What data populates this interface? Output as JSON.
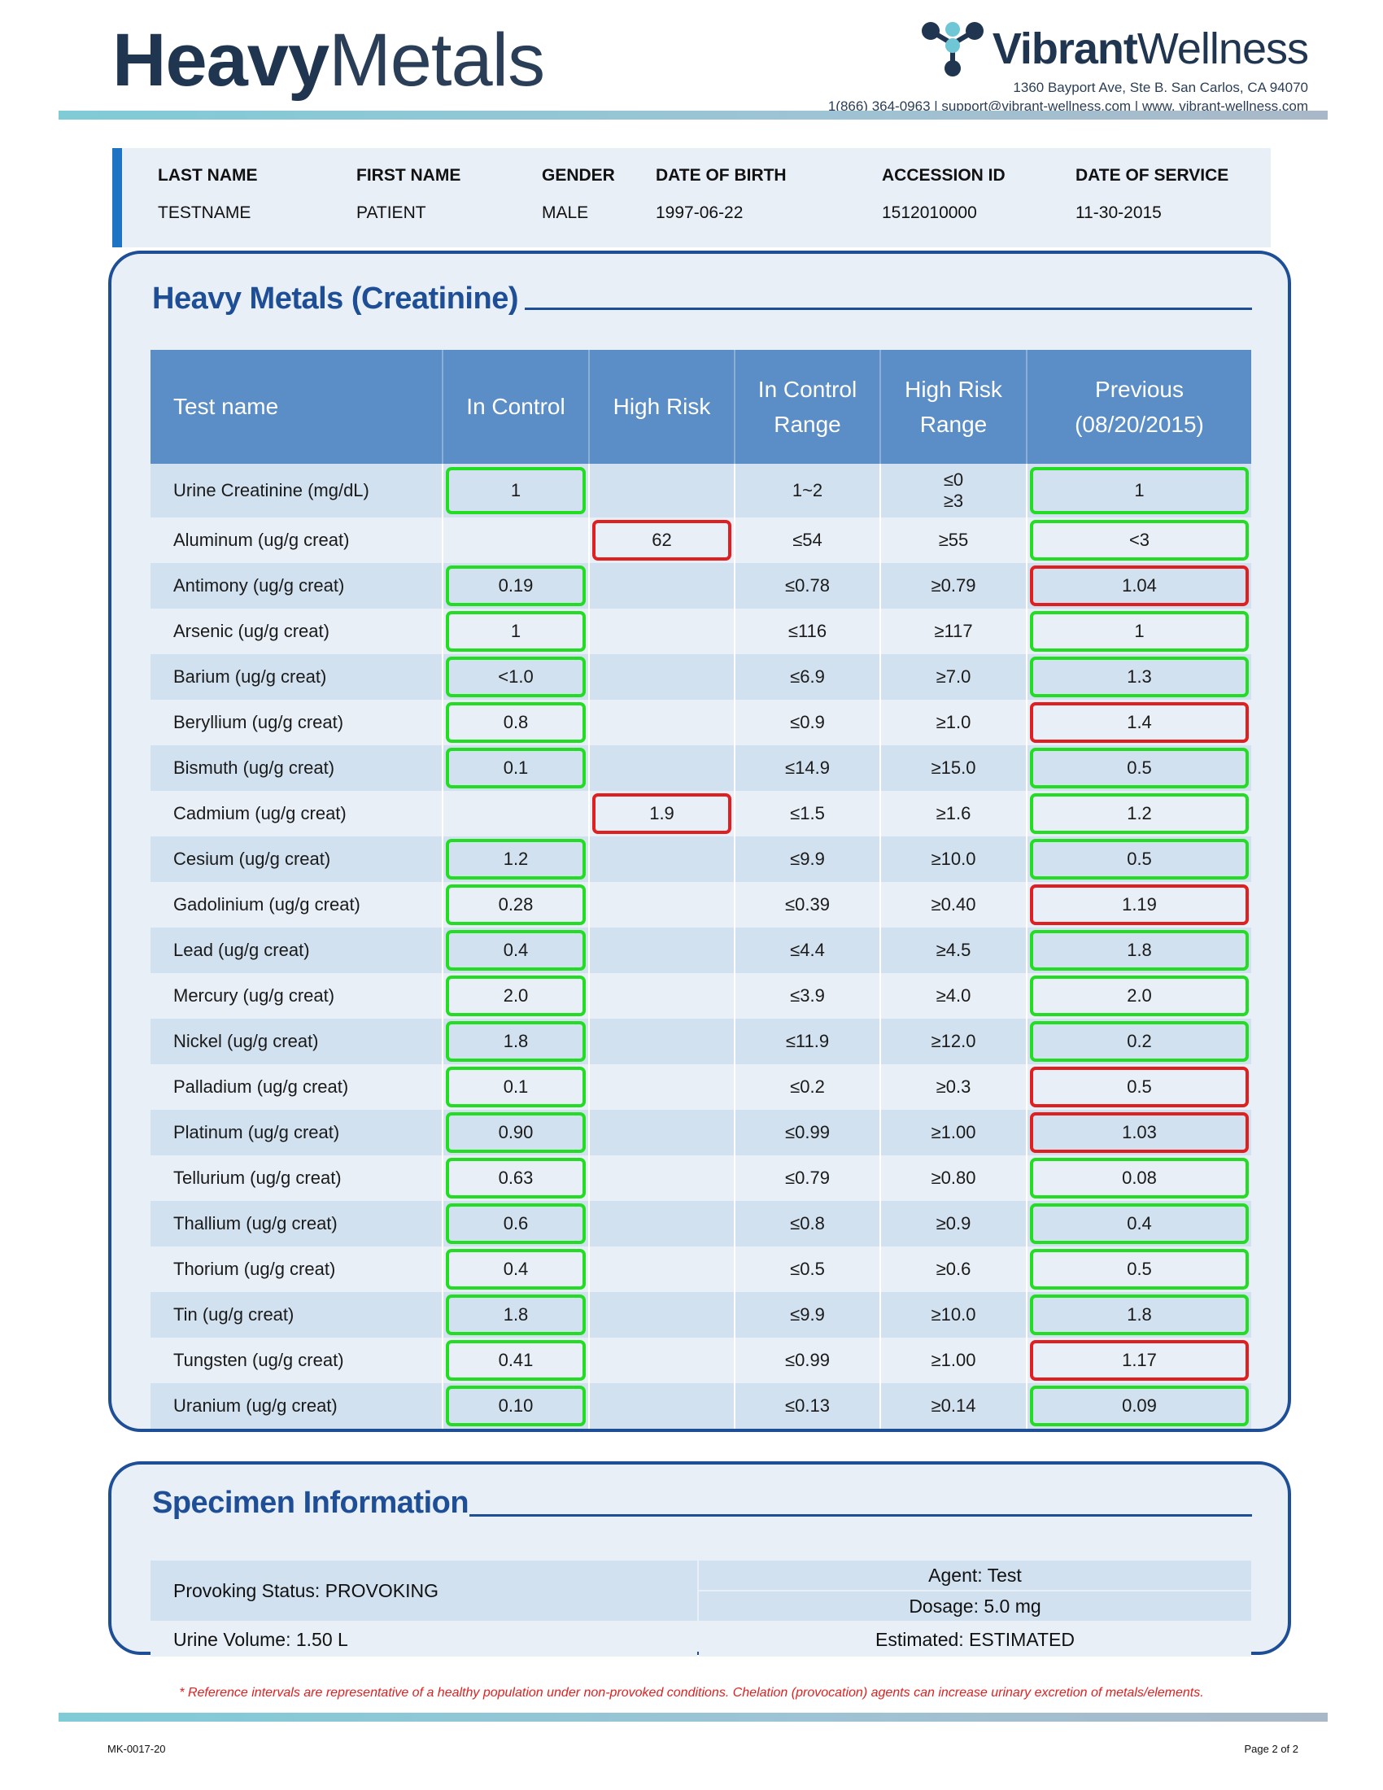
{
  "header": {
    "title_bold": "Heavy",
    "title_light": "Metals",
    "logo_bold": "Vibrant",
    "logo_light": "Wellness",
    "address": "1360 Bayport Ave, Ste B. San Carlos, CA 94070",
    "contact": "1(866) 364-0963 | support@vibrant-wellness.com | www. vibrant-wellness.com",
    "logo_icon": "molecule-logo-icon"
  },
  "patient": {
    "last_name_label": "LAST NAME",
    "last_name": "TESTNAME",
    "first_name_label": "FIRST NAME",
    "first_name": "PATIENT",
    "gender_label": "GENDER",
    "gender": "MALE",
    "dob_label": "DATE OF BIRTH",
    "dob": "1997-06-22",
    "accession_label": "ACCESSION ID",
    "accession": "1512010000",
    "service_label": "DATE OF SERVICE",
    "service": "11-30-2015"
  },
  "metals": {
    "section_title": "Heavy Metals (Creatinine)",
    "headers": {
      "test_name": "Test name",
      "in_control": "In Control",
      "high_risk": "High Risk",
      "in_control_range_1": "In Control",
      "in_control_range_2": "Range",
      "high_risk_range_1": "High Risk",
      "high_risk_range_2": "Range",
      "previous_1": "Previous",
      "previous_2": "(08/20/2015)"
    },
    "status_colors": {
      "in_control": "#22dd22",
      "high_risk": "#e02020"
    },
    "rows": [
      {
        "name": "Urine Creatinine (mg/dL)",
        "in_control": "1",
        "high_risk": "",
        "icr": "1~2",
        "hrr": "≤0",
        "hrr2": "≥3",
        "prev": "1",
        "prev_status": "green"
      },
      {
        "name": "Aluminum (ug/g creat)",
        "in_control": "",
        "high_risk": "62",
        "icr": "≤54",
        "hrr": "≥55",
        "prev": "<3",
        "prev_status": "green"
      },
      {
        "name": "Antimony (ug/g creat)",
        "in_control": "0.19",
        "high_risk": "",
        "icr": "≤0.78",
        "hrr": "≥0.79",
        "prev": "1.04",
        "prev_status": "red"
      },
      {
        "name": "Arsenic (ug/g creat)",
        "in_control": "1",
        "high_risk": "",
        "icr": "≤116",
        "hrr": "≥117",
        "prev": "1",
        "prev_status": "green"
      },
      {
        "name": "Barium (ug/g creat)",
        "in_control": "<1.0",
        "high_risk": "",
        "icr": "≤6.9",
        "hrr": "≥7.0",
        "prev": "1.3",
        "prev_status": "green"
      },
      {
        "name": "Beryllium (ug/g creat)",
        "in_control": "0.8",
        "high_risk": "",
        "icr": "≤0.9",
        "hrr": "≥1.0",
        "prev": "1.4",
        "prev_status": "red"
      },
      {
        "name": "Bismuth (ug/g creat)",
        "in_control": "0.1",
        "high_risk": "",
        "icr": "≤14.9",
        "hrr": "≥15.0",
        "prev": "0.5",
        "prev_status": "green"
      },
      {
        "name": "Cadmium (ug/g creat)",
        "in_control": "",
        "high_risk": "1.9",
        "icr": "≤1.5",
        "hrr": "≥1.6",
        "prev": "1.2",
        "prev_status": "green"
      },
      {
        "name": "Cesium (ug/g creat)",
        "in_control": "1.2",
        "high_risk": "",
        "icr": "≤9.9",
        "hrr": "≥10.0",
        "prev": "0.5",
        "prev_status": "green"
      },
      {
        "name": "Gadolinium (ug/g creat)",
        "in_control": "0.28",
        "high_risk": "",
        "icr": "≤0.39",
        "hrr": "≥0.40",
        "prev": "1.19",
        "prev_status": "red"
      },
      {
        "name": "Lead (ug/g creat)",
        "in_control": "0.4",
        "high_risk": "",
        "icr": "≤4.4",
        "hrr": "≥4.5",
        "prev": "1.8",
        "prev_status": "green"
      },
      {
        "name": "Mercury (ug/g creat)",
        "in_control": "2.0",
        "high_risk": "",
        "icr": "≤3.9",
        "hrr": "≥4.0",
        "prev": "2.0",
        "prev_status": "green"
      },
      {
        "name": "Nickel (ug/g creat)",
        "in_control": "1.8",
        "high_risk": "",
        "icr": "≤11.9",
        "hrr": "≥12.0",
        "prev": "0.2",
        "prev_status": "green"
      },
      {
        "name": "Palladium (ug/g creat)",
        "in_control": "0.1",
        "high_risk": "",
        "icr": "≤0.2",
        "hrr": "≥0.3",
        "prev": "0.5",
        "prev_status": "red"
      },
      {
        "name": "Platinum (ug/g creat)",
        "in_control": "0.90",
        "high_risk": "",
        "icr": "≤0.99",
        "hrr": "≥1.00",
        "prev": "1.03",
        "prev_status": "red"
      },
      {
        "name": "Tellurium (ug/g creat)",
        "in_control": "0.63",
        "high_risk": "",
        "icr": "≤0.79",
        "hrr": "≥0.80",
        "prev": "0.08",
        "prev_status": "green"
      },
      {
        "name": "Thallium (ug/g creat)",
        "in_control": "0.6",
        "high_risk": "",
        "icr": "≤0.8",
        "hrr": "≥0.9",
        "prev": "0.4",
        "prev_status": "green"
      },
      {
        "name": "Thorium (ug/g creat)",
        "in_control": "0.4",
        "high_risk": "",
        "icr": "≤0.5",
        "hrr": "≥0.6",
        "prev": "0.5",
        "prev_status": "green"
      },
      {
        "name": "Tin (ug/g creat)",
        "in_control": "1.8",
        "high_risk": "",
        "icr": "≤9.9",
        "hrr": "≥10.0",
        "prev": "1.8",
        "prev_status": "green"
      },
      {
        "name": "Tungsten (ug/g creat)",
        "in_control": "0.41",
        "high_risk": "",
        "icr": "≤0.99",
        "hrr": "≥1.00",
        "prev": "1.17",
        "prev_status": "red"
      },
      {
        "name": "Uranium (ug/g creat)",
        "in_control": "0.10",
        "high_risk": "",
        "icr": "≤0.13",
        "hrr": "≥0.14",
        "prev": "0.09",
        "prev_status": "green"
      }
    ]
  },
  "specimen": {
    "section_title": "Specimen Information",
    "provoking_status": "Provoking Status: PROVOKING",
    "urine_volume": "Urine Volume: 1.50 L",
    "agent": "Agent: Test",
    "dosage": "Dosage: 5.0 mg",
    "estimated": "Estimated: ESTIMATED"
  },
  "footnote": "* Reference intervals are representative of a healthy population under non-provoked conditions. Chelation (provocation) agents can increase urinary excretion of metals/elements.",
  "footer": {
    "code": "MK-0017-20",
    "page": "Page 2 of 2"
  }
}
